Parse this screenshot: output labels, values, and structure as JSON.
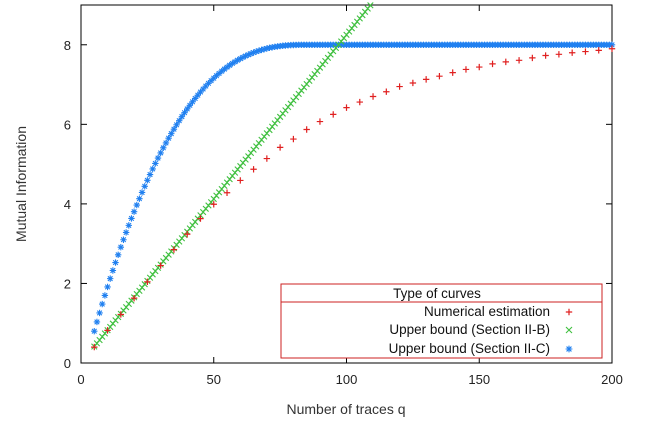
{
  "chart_data": {
    "type": "scatter",
    "xlabel": "Number of traces q",
    "ylabel": "Mutual Information",
    "xlim": [
      0,
      200
    ],
    "ylim": [
      0,
      9
    ],
    "x_ticks": [
      "0",
      "50",
      "100",
      "150",
      "200"
    ],
    "y_ticks": [
      "0",
      "2",
      "4",
      "6",
      "8"
    ],
    "grid": false,
    "legend": {
      "title": "Type of curves",
      "placement": "bottom-right",
      "border_color": "#cc2222"
    },
    "series": [
      {
        "name": "Numerical estimation",
        "marker": "plus",
        "color": "#e02020",
        "points": [
          [
            5,
            0.4
          ],
          [
            10,
            0.82
          ],
          [
            15,
            1.22
          ],
          [
            20,
            1.63
          ],
          [
            25,
            2.04
          ],
          [
            30,
            2.45
          ],
          [
            35,
            2.85
          ],
          [
            40,
            3.24
          ],
          [
            45,
            3.63
          ],
          [
            50,
            3.99
          ],
          [
            55,
            4.28
          ],
          [
            60,
            4.59
          ],
          [
            65,
            4.87
          ],
          [
            70,
            5.14
          ],
          [
            75,
            5.42
          ],
          [
            80,
            5.63
          ],
          [
            85,
            5.87
          ],
          [
            90,
            6.07
          ],
          [
            95,
            6.25
          ],
          [
            100,
            6.42
          ],
          [
            105,
            6.56
          ],
          [
            110,
            6.7
          ],
          [
            115,
            6.82
          ],
          [
            120,
            6.95
          ],
          [
            125,
            7.04
          ],
          [
            130,
            7.13
          ],
          [
            135,
            7.21
          ],
          [
            140,
            7.3
          ],
          [
            145,
            7.38
          ],
          [
            150,
            7.44
          ],
          [
            155,
            7.52
          ],
          [
            160,
            7.57
          ],
          [
            165,
            7.61
          ],
          [
            170,
            7.67
          ],
          [
            175,
            7.73
          ],
          [
            180,
            7.76
          ],
          [
            185,
            7.8
          ],
          [
            190,
            7.83
          ],
          [
            195,
            7.86
          ],
          [
            200,
            7.9
          ]
        ]
      },
      {
        "name": "Upper bound (Section II-B)",
        "marker": "cross",
        "color": "#40c040",
        "slope": 0.0825,
        "intercept": 0.0,
        "x_range": [
          5,
          110
        ],
        "x_step": 1
      },
      {
        "name": "Upper bound (Section II-C)",
        "marker": "star",
        "color": "#2080f0",
        "saturation": 8,
        "x_range": [
          5,
          200
        ],
        "x_step": 1
      }
    ]
  }
}
